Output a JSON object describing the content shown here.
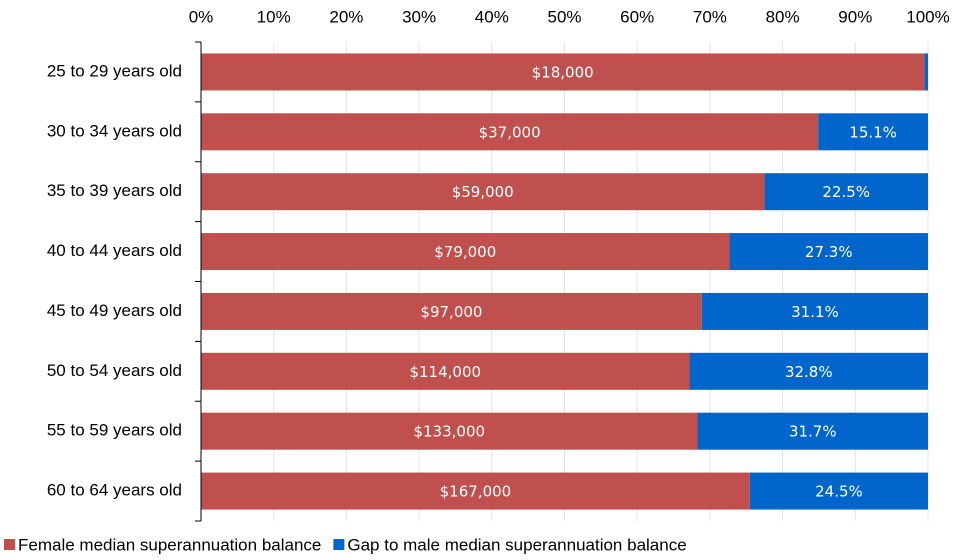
{
  "chart_data": {
    "type": "stacked-bar-horizontal",
    "categories": [
      "25 to 29 years old",
      "30 to 34 years old",
      "35 to 39 years old",
      "40 to 44 years old",
      "45 to 49 years old",
      "50 to 54 years old",
      "55 to 59 years old",
      "60 to 64 years old"
    ],
    "series": [
      {
        "name": "Female median superannuation balance",
        "color": "#c0504d",
        "values": [
          99.5,
          84.9,
          77.5,
          72.7,
          68.9,
          67.2,
          68.3,
          75.5
        ],
        "data_labels": [
          "$18,000",
          "$37,000",
          "$59,000",
          "$79,000",
          "$97,000",
          "$114,000",
          "$133,000",
          "$167,000"
        ]
      },
      {
        "name": "Gap to male median superannuation balance",
        "color": "#0066cc",
        "values": [
          0.5,
          15.1,
          22.5,
          27.3,
          31.1,
          32.8,
          31.7,
          24.5
        ],
        "value_labels": [
          null,
          "15.1%",
          "22.5%",
          "27.3%",
          "31.1%",
          "32.8%",
          "31.7%",
          "24.5%"
        ]
      }
    ],
    "xlim": [
      0,
      100
    ],
    "xticks": [
      {
        "value": 0,
        "label": "0%"
      },
      {
        "value": 10,
        "label": "10%"
      },
      {
        "value": 20,
        "label": "20%"
      },
      {
        "value": 30,
        "label": "30%"
      },
      {
        "value": 40,
        "label": "40%"
      },
      {
        "value": 50,
        "label": "50%"
      },
      {
        "value": 60,
        "label": "60%"
      },
      {
        "value": 70,
        "label": "70%"
      },
      {
        "value": 80,
        "label": "80%"
      },
      {
        "value": 90,
        "label": "90%"
      },
      {
        "value": 100,
        "label": "100%"
      }
    ],
    "grid": true,
    "legend": "bottom"
  }
}
